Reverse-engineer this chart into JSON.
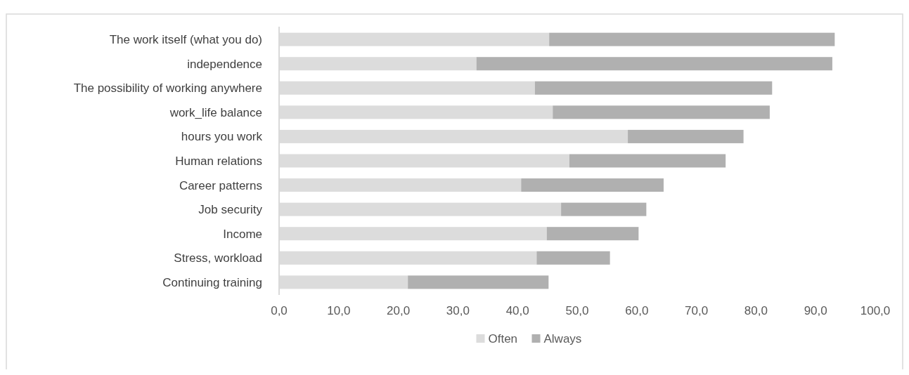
{
  "chart_data": {
    "type": "bar",
    "orientation": "horizontal",
    "stacked": true,
    "categories": [
      "The work itself (what you do)",
      "independence",
      "The possibility of working anywhere",
      "work_life balance ",
      "hours you work",
      "Human relations",
      "Career patterns",
      "Job security",
      "Income",
      "Stress, workload",
      "Continuing training "
    ],
    "series": [
      {
        "name": "Often",
        "color": "#dcdcdc",
        "values": [
          45.3,
          33.1,
          42.9,
          45.9,
          58.5,
          48.7,
          40.6,
          47.3,
          44.9,
          43.2,
          21.6
        ]
      },
      {
        "name": "Always",
        "color": "#b0b0b0",
        "values": [
          47.9,
          59.7,
          39.8,
          36.4,
          19.4,
          26.2,
          23.9,
          14.3,
          15.4,
          12.3,
          23.6
        ]
      }
    ],
    "xlim": [
      0,
      100
    ],
    "xticks": [
      {
        "value": 0,
        "label": "0,0"
      },
      {
        "value": 10,
        "label": "10,0"
      },
      {
        "value": 20,
        "label": "20,0"
      },
      {
        "value": 30,
        "label": "30,0"
      },
      {
        "value": 40,
        "label": "40,0"
      },
      {
        "value": 50,
        "label": "50,0"
      },
      {
        "value": 60,
        "label": "60,0"
      },
      {
        "value": 70,
        "label": "70,0"
      },
      {
        "value": 80,
        "label": "80,0"
      },
      {
        "value": 90,
        "label": "90,0"
      },
      {
        "value": 100,
        "label": "100,0"
      }
    ],
    "grid": false,
    "legend": "bottom"
  }
}
